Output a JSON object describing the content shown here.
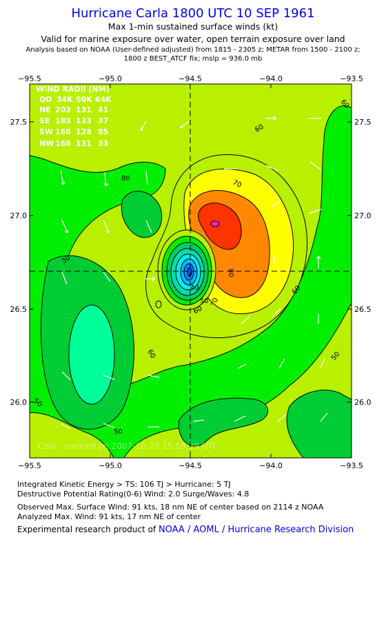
{
  "header": {
    "title": "Hurricane Carla 1800 UTC 10 SEP 1961",
    "subtitle_1": "Max 1-min sustained surface winds (kt)",
    "subtitle_2": "Valid for marine exposure over water, open terrain exposure over land",
    "subtitle_3": "Analysis based on  NOAA (User-defined adjusted) from 1815 - 2305 z;  METAR from 1500 - 2100 z;",
    "subtitle_4": "1800 z BEST_ATCF fix; mslp = 936.0 mb"
  },
  "map": {
    "lon_ticks": [
      "−95.5",
      "−95.0",
      "−94.5",
      "−94.0",
      "−93.5"
    ],
    "lat_ticks": [
      "27.5",
      "27.0",
      "26.5",
      "26.0"
    ],
    "lon_range": [
      -95.5,
      -93.5
    ],
    "lat_range": [
      25.7,
      27.75
    ],
    "center": {
      "lon": -94.5,
      "lat": 26.7
    },
    "max_wind_location": "18 nm NE of center",
    "wind_radii": {
      "title": "WIND RADII (NM)",
      "header": [
        "QD",
        "34K",
        "50K",
        "64K"
      ],
      "rows": [
        [
          "NE",
          "203",
          "131",
          "41"
        ],
        [
          "SE",
          "183",
          "133",
          "37"
        ],
        [
          "SW",
          "168",
          "128",
          "85"
        ],
        [
          "NW",
          "168",
          "131",
          "33"
        ]
      ]
    },
    "contour_labels": [
      "30",
      "40",
      "50",
      "60",
      "70",
      "80"
    ],
    "watermark": "Cola - created on 2007-10-23 15:58:29 UTC",
    "colors": {
      "band_40": "#00ee00",
      "band_50": "#00cc33",
      "band_30": "#00ff99",
      "band_60": "#b8f000",
      "band_70": "#ffff00",
      "band_80": "#ff8800",
      "band_90": "#ff3300",
      "eye_cyan": "#00bbff",
      "eye_inner": "#0055ff",
      "peak": "#ff22cc"
    }
  },
  "footer": {
    "line_1": "Integrated Kinetic Energy > TS: 106 TJ   > Hurricane: 5 TJ",
    "line_2": "Destructive Potential Rating(0-6)   Wind: 2.0 Surge/Waves: 4.8",
    "line_3": "Observed Max. Surface Wind: 91 kts, 18 nm NE of center based on 2114 z NOAA",
    "line_4": "Analyzed Max. Wind: 91 kts, 17 nm NE of center",
    "line_5": "Experimental research product of",
    "link": "NOAA / AOML / Hurricane Research Division"
  }
}
